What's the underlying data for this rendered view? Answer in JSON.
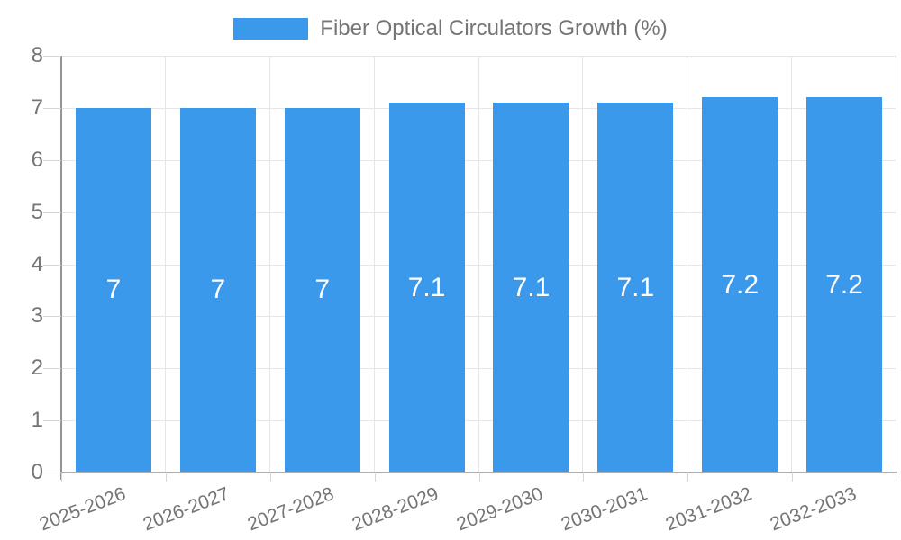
{
  "legend": {
    "label": "Fiber Optical Circulators Growth (%)"
  },
  "chart_data": {
    "type": "bar",
    "title": "Fiber Optical Circulators Growth (%)",
    "categories": [
      "2025-2026",
      "2026-2027",
      "2027-2028",
      "2028-2029",
      "2029-2030",
      "2030-2031",
      "2031-2032",
      "2032-2033"
    ],
    "series": [
      {
        "name": "Fiber Optical Circulators Growth (%)",
        "values": [
          7,
          7,
          7,
          7.1,
          7.1,
          7.1,
          7.2,
          7.2
        ]
      }
    ],
    "data_labels": [
      "7",
      "7",
      "7",
      "7.1",
      "7.1",
      "7.1",
      "7.2",
      "7.2"
    ],
    "xlabel": "",
    "ylabel": "",
    "ylim": [
      0,
      8
    ],
    "yticks": [
      0,
      1,
      2,
      3,
      4,
      5,
      6,
      7,
      8
    ],
    "grid": true,
    "legend_position": "top",
    "colors": {
      "bar": "#3B99EC",
      "grid": "#e6e6e6",
      "axis": "#949494",
      "baseline": "#b0b0b0",
      "tick_mark": "#d6d6d6",
      "tick_text": "#757575",
      "title_text": "#757575",
      "bar_label": "#ffffff"
    }
  }
}
